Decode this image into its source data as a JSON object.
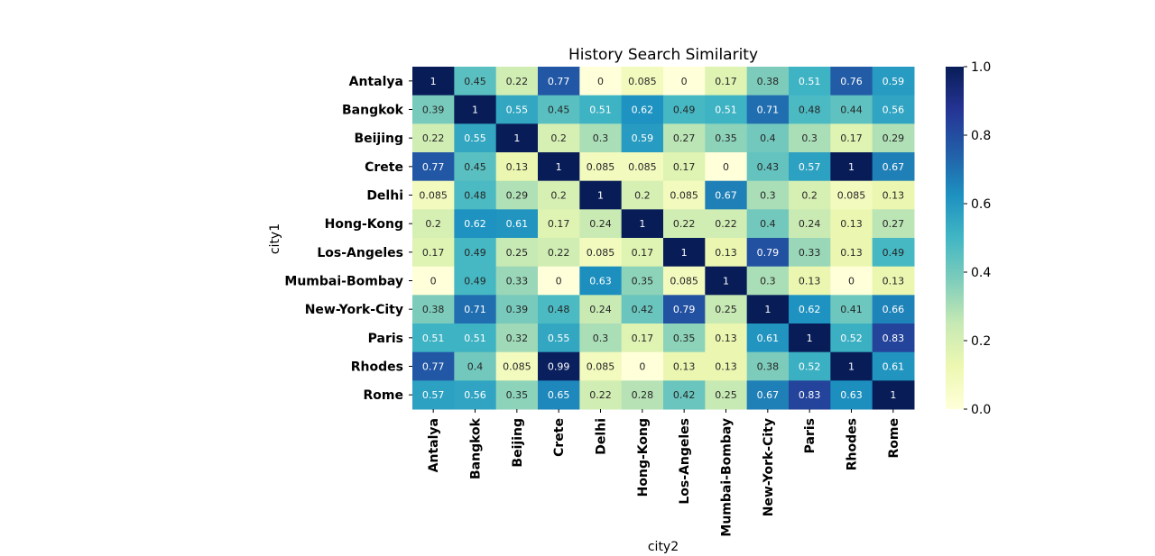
{
  "chart_data": {
    "type": "heatmap",
    "title": "History Search Similarity",
    "xlabel": "city2",
    "ylabel": "city1",
    "colormap": "YlGnBu",
    "vmin": 0.0,
    "vmax": 1.0,
    "colorbar_ticks": [
      "0.0",
      "0.2",
      "0.4",
      "0.6",
      "0.8",
      "1.0"
    ],
    "rows": [
      "Antalya",
      "Bangkok",
      "Beijing",
      "Crete",
      "Delhi",
      "Hong-Kong",
      "Los-Angeles",
      "Mumbai-Bombay",
      "New-York-City",
      "Paris",
      "Rhodes",
      "Rome"
    ],
    "columns": [
      "Antalya",
      "Bangkok",
      "Beijing",
      "Crete",
      "Delhi",
      "Hong-Kong",
      "Los-Angeles",
      "Mumbai-Bombay",
      "New-York-City",
      "Paris",
      "Rhodes",
      "Rome"
    ],
    "values": [
      [
        1,
        0.45,
        0.22,
        0.77,
        0,
        0.085,
        0,
        0.17,
        0.38,
        0.51,
        0.76,
        0.59
      ],
      [
        0.39,
        1,
        0.55,
        0.45,
        0.51,
        0.62,
        0.49,
        0.51,
        0.71,
        0.48,
        0.44,
        0.56
      ],
      [
        0.22,
        0.55,
        1,
        0.2,
        0.3,
        0.59,
        0.27,
        0.35,
        0.4,
        0.3,
        0.17,
        0.29
      ],
      [
        0.77,
        0.45,
        0.13,
        1,
        0.085,
        0.085,
        0.17,
        0,
        0.43,
        0.57,
        1,
        0.67
      ],
      [
        0.085,
        0.48,
        0.29,
        0.2,
        1,
        0.2,
        0.085,
        0.67,
        0.3,
        0.2,
        0.085,
        0.13
      ],
      [
        0.2,
        0.62,
        0.61,
        0.17,
        0.24,
        1,
        0.22,
        0.22,
        0.4,
        0.24,
        0.13,
        0.27
      ],
      [
        0.17,
        0.49,
        0.25,
        0.22,
        0.085,
        0.17,
        1,
        0.13,
        0.79,
        0.33,
        0.13,
        0.49
      ],
      [
        0,
        0.49,
        0.33,
        0,
        0.63,
        0.35,
        0.085,
        1,
        0.3,
        0.13,
        0,
        0.13
      ],
      [
        0.38,
        0.71,
        0.39,
        0.48,
        0.24,
        0.42,
        0.79,
        0.25,
        1,
        0.62,
        0.41,
        0.66
      ],
      [
        0.51,
        0.51,
        0.32,
        0.55,
        0.3,
        0.17,
        0.35,
        0.13,
        0.61,
        1,
        0.52,
        0.83
      ],
      [
        0.77,
        0.4,
        0.085,
        0.99,
        0.085,
        0,
        0.13,
        0.13,
        0.38,
        0.52,
        1,
        0.61
      ],
      [
        0.57,
        0.56,
        0.35,
        0.65,
        0.22,
        0.28,
        0.42,
        0.25,
        0.67,
        0.83,
        0.63,
        1
      ]
    ],
    "grid": false,
    "legend": "colorbar-right"
  }
}
